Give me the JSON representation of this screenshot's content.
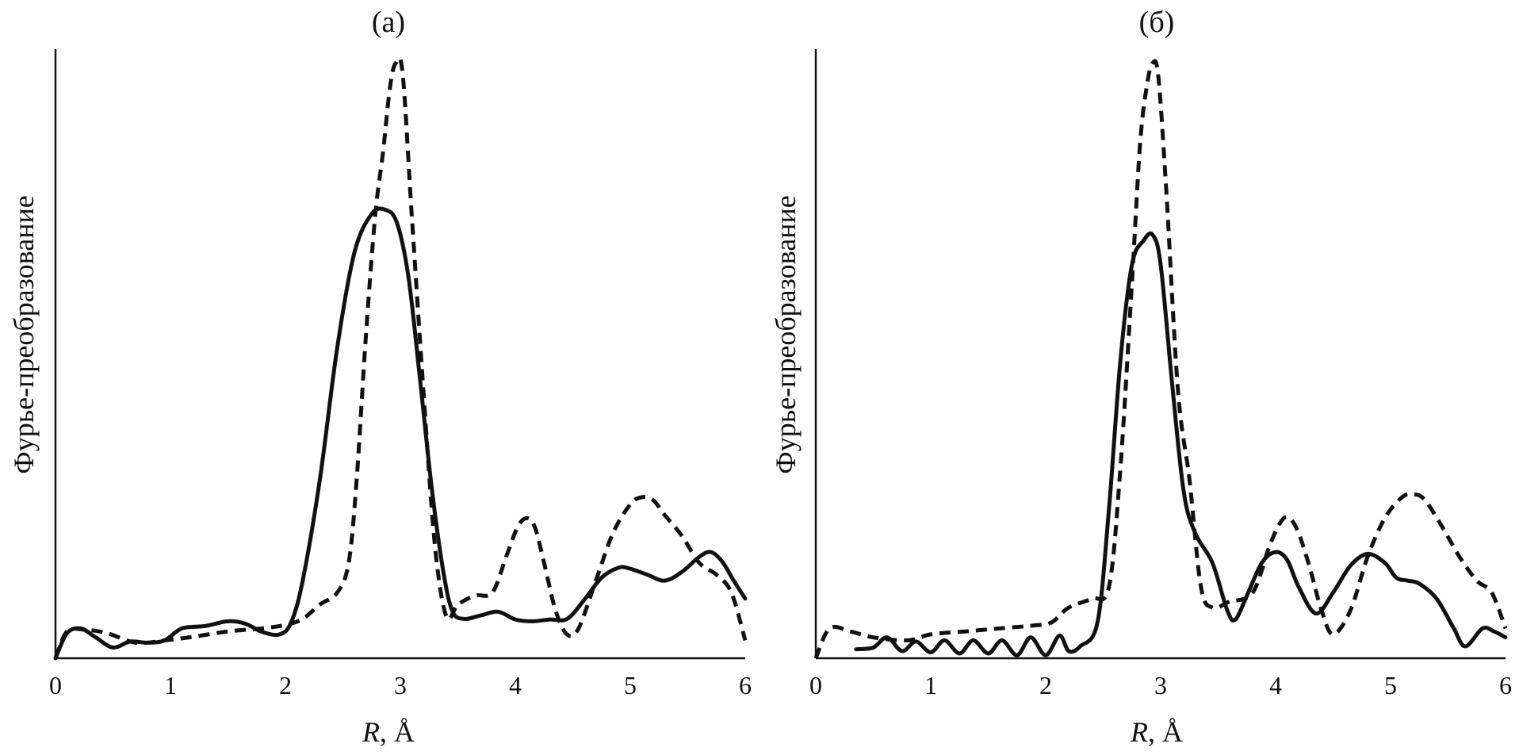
{
  "chart_data": [
    {
      "type": "line",
      "title": "(а)",
      "xlabel_var": "R",
      "xlabel_unit": ", Å",
      "ylabel": "Фурье-преобразование",
      "xlim": [
        0,
        6
      ],
      "ylim": [
        0,
        1
      ],
      "xticks": [
        "0",
        "1",
        "2",
        "3",
        "4",
        "5",
        "6"
      ],
      "grid": false,
      "series": [
        {
          "style": "solid",
          "x": [
            0,
            0.1,
            0.22,
            0.35,
            0.5,
            0.65,
            0.8,
            0.95,
            1.1,
            1.3,
            1.5,
            1.65,
            1.8,
            1.95,
            2.05,
            2.15,
            2.3,
            2.45,
            2.6,
            2.75,
            2.87,
            2.97,
            3.07,
            3.17,
            3.27,
            3.37,
            3.45,
            3.55,
            3.7,
            3.85,
            4.0,
            4.15,
            4.3,
            4.45,
            4.6,
            4.75,
            4.9,
            5.0,
            5.15,
            5.3,
            5.45,
            5.6,
            5.7,
            5.8,
            5.9,
            6.0
          ],
          "y": [
            0.0,
            0.042,
            0.05,
            0.035,
            0.018,
            0.028,
            0.026,
            0.03,
            0.05,
            0.054,
            0.062,
            0.058,
            0.044,
            0.04,
            0.06,
            0.13,
            0.3,
            0.52,
            0.68,
            0.745,
            0.752,
            0.73,
            0.64,
            0.47,
            0.29,
            0.15,
            0.08,
            0.066,
            0.072,
            0.078,
            0.065,
            0.062,
            0.065,
            0.066,
            0.098,
            0.135,
            0.152,
            0.15,
            0.14,
            0.13,
            0.145,
            0.17,
            0.178,
            0.162,
            0.13,
            0.1
          ]
        },
        {
          "style": "dashed",
          "x": [
            0,
            0.1,
            0.25,
            0.45,
            0.7,
            0.95,
            1.2,
            1.5,
            1.8,
            2.0,
            2.15,
            2.3,
            2.45,
            2.55,
            2.62,
            2.7,
            2.78,
            2.85,
            2.91,
            2.96,
            3.02,
            3.1,
            3.2,
            3.3,
            3.4,
            3.5,
            3.65,
            3.8,
            3.92,
            4.02,
            4.1,
            4.17,
            4.25,
            4.35,
            4.45,
            4.55,
            4.7,
            4.85,
            5.0,
            5.1,
            5.2,
            5.3,
            5.45,
            5.6,
            5.75,
            5.88,
            6.0
          ],
          "y": [
            0.0,
            0.045,
            0.048,
            0.042,
            0.026,
            0.03,
            0.036,
            0.045,
            0.05,
            0.056,
            0.066,
            0.09,
            0.11,
            0.16,
            0.3,
            0.54,
            0.74,
            0.85,
            0.958,
            0.998,
            0.98,
            0.74,
            0.45,
            0.19,
            0.07,
            0.09,
            0.105,
            0.11,
            0.17,
            0.22,
            0.235,
            0.22,
            0.16,
            0.08,
            0.04,
            0.05,
            0.13,
            0.21,
            0.258,
            0.27,
            0.265,
            0.24,
            0.205,
            0.16,
            0.14,
            0.11,
            0.03
          ]
        }
      ]
    },
    {
      "type": "line",
      "title": "(б)",
      "xlabel_var": "R",
      "xlabel_unit": ", Å",
      "ylabel": "Фурье-преобразование",
      "xlim": [
        0,
        6
      ],
      "ylim": [
        0,
        1
      ],
      "xticks": [
        "0",
        "1",
        "2",
        "3",
        "4",
        "5",
        "6"
      ],
      "grid": false,
      "series": [
        {
          "style": "solid",
          "x": [
            0.35,
            0.5,
            0.62,
            0.75,
            0.87,
            1.0,
            1.12,
            1.25,
            1.37,
            1.5,
            1.62,
            1.75,
            1.87,
            2.0,
            2.12,
            2.2,
            2.3,
            2.45,
            2.55,
            2.65,
            2.75,
            2.85,
            2.93,
            3.0,
            3.1,
            3.2,
            3.3,
            3.45,
            3.58,
            3.65,
            3.75,
            3.88,
            4.0,
            4.1,
            4.2,
            4.35,
            4.5,
            4.65,
            4.8,
            4.95,
            5.05,
            5.15,
            5.25,
            5.4,
            5.55,
            5.65,
            5.8,
            5.9,
            6.0
          ],
          "y": [
            0.015,
            0.018,
            0.035,
            0.012,
            0.028,
            0.01,
            0.03,
            0.008,
            0.03,
            0.008,
            0.03,
            0.005,
            0.035,
            0.005,
            0.038,
            0.012,
            0.02,
            0.06,
            0.25,
            0.5,
            0.66,
            0.7,
            0.71,
            0.66,
            0.46,
            0.28,
            0.21,
            0.16,
            0.08,
            0.065,
            0.105,
            0.16,
            0.178,
            0.165,
            0.12,
            0.075,
            0.11,
            0.155,
            0.175,
            0.16,
            0.135,
            0.13,
            0.125,
            0.1,
            0.05,
            0.02,
            0.05,
            0.045,
            0.035
          ]
        },
        {
          "style": "dashed",
          "x": [
            0,
            0.12,
            0.3,
            0.5,
            0.8,
            1.0,
            1.3,
            1.6,
            1.9,
            2.05,
            2.2,
            2.4,
            2.55,
            2.65,
            2.75,
            2.82,
            2.88,
            2.93,
            2.98,
            3.05,
            3.15,
            3.25,
            3.35,
            3.45,
            3.6,
            3.8,
            3.95,
            4.05,
            4.12,
            4.2,
            4.3,
            4.4,
            4.5,
            4.65,
            4.8,
            4.95,
            5.1,
            5.2,
            5.3,
            5.45,
            5.6,
            5.75,
            5.88,
            6.0
          ],
          "y": [
            0.0,
            0.05,
            0.045,
            0.035,
            0.03,
            0.04,
            0.045,
            0.05,
            0.055,
            0.06,
            0.085,
            0.1,
            0.12,
            0.32,
            0.63,
            0.86,
            0.96,
            0.998,
            0.975,
            0.78,
            0.45,
            0.3,
            0.12,
            0.085,
            0.095,
            0.11,
            0.19,
            0.23,
            0.235,
            0.21,
            0.15,
            0.08,
            0.04,
            0.08,
            0.17,
            0.235,
            0.27,
            0.275,
            0.265,
            0.22,
            0.17,
            0.13,
            0.11,
            0.05
          ]
        }
      ]
    }
  ]
}
